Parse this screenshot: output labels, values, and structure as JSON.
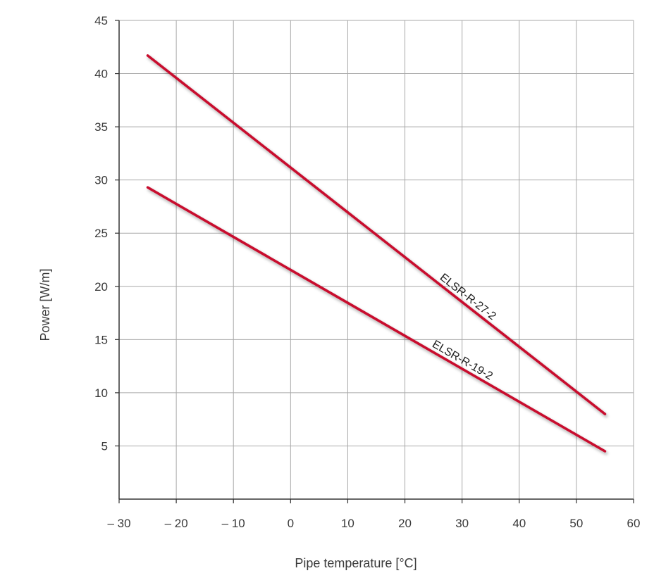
{
  "chart_data": {
    "type": "line",
    "title": "",
    "xlabel": "Pipe temperature [°C]",
    "ylabel": "Power [W/m]",
    "xlim": [
      -30,
      60
    ],
    "ylim": [
      0,
      45
    ],
    "xticks": [
      -30,
      -20,
      -10,
      0,
      10,
      20,
      30,
      40,
      50,
      60
    ],
    "xtick_labels": [
      "– 30",
      "– 20",
      "– 10",
      "0",
      "10",
      "20",
      "30",
      "40",
      "50",
      "60"
    ],
    "yticks": [
      5,
      10,
      15,
      20,
      25,
      30,
      35,
      40,
      45
    ],
    "ytick_labels": [
      "5",
      "10",
      "15",
      "20",
      "25",
      "30",
      "35",
      "40",
      "45"
    ],
    "grid": true,
    "line_color": "#c8102e",
    "series": [
      {
        "name": "ELSR-R-27-2",
        "x": [
          -25,
          55
        ],
        "y": [
          41.7,
          8.0
        ]
      },
      {
        "name": "ELSR-R-19-2",
        "x": [
          -25,
          55
        ],
        "y": [
          29.3,
          4.5
        ]
      }
    ]
  }
}
